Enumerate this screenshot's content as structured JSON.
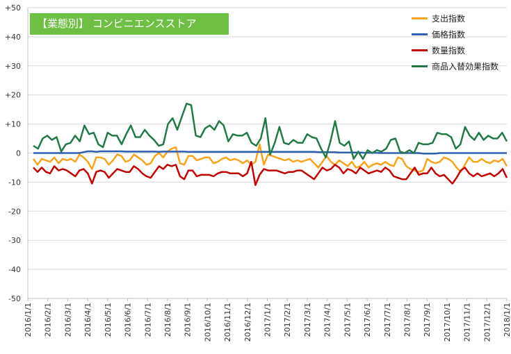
{
  "chart_data": {
    "type": "line",
    "title": "【業態別】 コンビニエンスストア",
    "ylim": [
      -50,
      50
    ],
    "y_ticks": [
      "+50",
      "+40",
      "+30",
      "+20",
      "+10",
      "0",
      "-10",
      "-20",
      "-30",
      "-40",
      "-50"
    ],
    "x_tick_labels": [
      "2016/1/1",
      "2016/2/1",
      "2016/3/1",
      "2016/4/1",
      "2016/5/1",
      "2016/6/1",
      "2016/7/1",
      "2016/8/1",
      "2016/9/1",
      "2016/10/1",
      "2016/11/1",
      "2016/12/1",
      "2017/1/1",
      "2017/2/1",
      "2017/3/1",
      "2017/4/1",
      "2017/5/1",
      "2017/6/1",
      "2017/7/1",
      "2017/8/1",
      "2017/9/1",
      "2017/10/1",
      "2017/11/1",
      "2017/12/1",
      "2018/1/1"
    ],
    "grid": true,
    "legend_position": "top-right",
    "series": [
      {
        "name": "支出指数",
        "color": "#f7a31c",
        "values": [
          -2,
          -4,
          -2,
          -2.5,
          -3,
          -1.5,
          -3.5,
          -2,
          -2.5,
          -2,
          -3,
          -0.5,
          -1.5,
          -3,
          -5.5,
          -1.5,
          -1.5,
          -2,
          -4,
          -2.5,
          -0.5,
          -1,
          -3,
          -2.5,
          -0.5,
          -1.5,
          -2.5,
          -4,
          -3.5,
          -1,
          0,
          -1.5,
          0.5,
          1.5,
          2,
          -3.5,
          -4,
          -1,
          -1,
          -2.5,
          -2,
          -1.5,
          -1.5,
          -3.5,
          -3,
          -2,
          -1.5,
          -2.5,
          -2,
          -2.5,
          -3.5,
          -2.5,
          -4,
          -3,
          3,
          -4,
          -0.5,
          -1,
          -1.5,
          -2,
          -2.5,
          -2,
          -3,
          -2.5,
          -3,
          -2.5,
          -2,
          -3.5,
          -5,
          -3,
          -1,
          -3,
          -4,
          -2.5,
          -3.5,
          -4.5,
          -3,
          -5,
          -4.5,
          -3,
          -5,
          -4,
          -3.5,
          -4,
          -3,
          -4,
          -4.5,
          -1.5,
          -2,
          -4.5,
          -5.5,
          -6,
          -6.5,
          -6,
          -2,
          -3,
          -3.5,
          -3,
          -1.5,
          -2,
          -3,
          -5,
          -6.5,
          -4,
          -1.5,
          -3,
          -3,
          -2,
          -3,
          -3.5,
          -2.5,
          -3,
          -2,
          -4.5
        ]
      },
      {
        "name": "価格指数",
        "color": "#2e5fb0",
        "values": [
          0,
          0,
          0,
          0,
          0,
          0,
          0,
          0,
          0,
          0,
          0,
          0,
          0.3,
          0.6,
          0.6,
          0.4,
          0.6,
          0.6,
          0.6,
          0.6,
          0.6,
          0.6,
          0.5,
          0.5,
          0.5,
          0.5,
          0.5,
          0.5,
          0.5,
          0.5,
          0.4,
          0.5,
          0.5,
          0.5,
          0.5,
          0.5,
          0.5,
          0.4,
          0.4,
          0.4,
          0.4,
          0.4,
          0.4,
          0.4,
          0.4,
          0.4,
          0.4,
          0.4,
          0.4,
          0.4,
          0.4,
          0.4,
          0.4,
          0.4,
          0.4,
          0.4,
          0.4,
          0.4,
          0.4,
          0.4,
          0.4,
          0.4,
          0.4,
          0.4,
          0.4,
          0.4,
          0.4,
          0.4,
          0.3,
          0.3,
          0.3,
          0.3,
          0.3,
          0.2,
          0.2,
          0.2,
          0.2,
          0.2,
          0.2,
          0.1,
          0.1,
          0.1,
          0.1,
          0,
          0,
          0,
          0,
          0,
          0,
          0,
          0,
          0,
          0,
          -0.2,
          -0.2,
          -0.2,
          -0.2,
          0,
          0,
          0,
          0,
          0,
          0,
          0,
          0,
          0,
          0,
          0,
          0,
          0,
          0,
          0,
          0,
          0
        ]
      },
      {
        "name": "数量指数",
        "color": "#c00000",
        "values": [
          -5,
          -6.5,
          -5,
          -6.5,
          -7,
          -4.5,
          -6,
          -5.5,
          -6,
          -7,
          -8,
          -6,
          -5.5,
          -7,
          -10.5,
          -6.5,
          -6,
          -6.5,
          -8.5,
          -7,
          -5.5,
          -6,
          -6.5,
          -6.5,
          -4.5,
          -5.5,
          -7,
          -8,
          -8.5,
          -6.5,
          -4.5,
          -5.5,
          -4,
          -4.5,
          -4,
          -8,
          -9,
          -6,
          -6,
          -8,
          -7.5,
          -7.5,
          -7.5,
          -8,
          -7,
          -6.5,
          -6.5,
          -7,
          -7,
          -7,
          -8,
          -7,
          -3,
          -11,
          -7.5,
          -5.5,
          -6,
          -6,
          -6,
          -6.5,
          -7,
          -6.5,
          -6.5,
          -6,
          -6,
          -7,
          -8,
          -9,
          -7,
          -5,
          -6,
          -5.5,
          -4,
          -5,
          -7,
          -5.5,
          -6,
          -7,
          -5,
          -6,
          -7,
          -6.5,
          -6,
          -6.5,
          -5,
          -6,
          -8,
          -8.5,
          -9,
          -9,
          -7,
          -5,
          -7.5,
          -7,
          -7,
          -5,
          -7,
          -8,
          -7.5,
          -9,
          -10.5,
          -8.5,
          -6,
          -5,
          -7,
          -8,
          -7,
          -8,
          -7.5,
          -7,
          -8,
          -7,
          -5.5,
          -8.5
        ]
      },
      {
        "name": "商品入替効果指数",
        "color": "#217a45",
        "values": [
          2.5,
          1.5,
          5,
          6,
          4.5,
          5.5,
          0.5,
          3,
          3.5,
          6,
          4,
          9.5,
          6.5,
          7,
          3,
          2,
          7,
          6,
          6,
          3,
          6.5,
          9.5,
          5.5,
          5.5,
          8,
          6,
          4.5,
          2.5,
          3,
          10,
          12,
          8,
          12.5,
          17,
          16.5,
          6,
          5.5,
          8.5,
          9.5,
          8,
          11,
          9.5,
          4,
          6.5,
          6,
          6,
          7,
          3.5,
          2.5,
          5,
          12,
          -0.5,
          3.5,
          9,
          3.5,
          3,
          4.5,
          3.5,
          3.5,
          6.5,
          5.5,
          5,
          1.5,
          -1.5,
          4,
          11,
          3.5,
          2.5,
          4,
          -2,
          0.5,
          -2,
          1,
          0,
          1,
          0.5,
          1.5,
          4.5,
          5,
          0.5,
          0,
          1,
          0,
          3.5,
          3,
          3,
          3.5,
          7,
          6.5,
          6.5,
          5.5,
          1.5,
          3,
          9,
          6,
          4.5,
          7,
          4.5,
          6,
          5,
          5,
          7,
          4
        ]
      }
    ]
  }
}
